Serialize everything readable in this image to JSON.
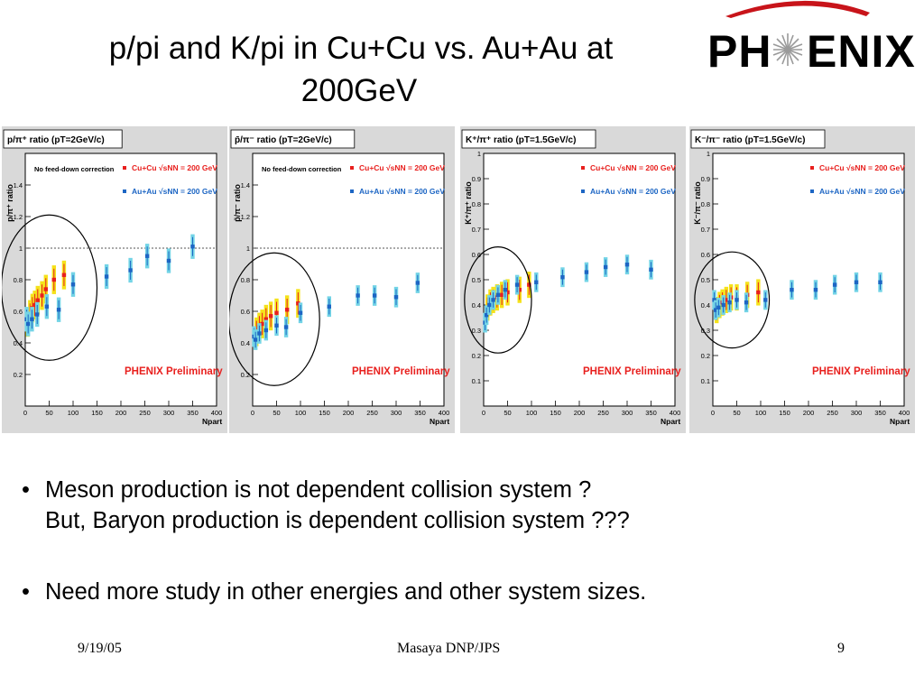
{
  "title_line1": "p/pi and K/pi in Cu+Cu vs. Au+Au at",
  "title_line2": "200GeV",
  "logo": {
    "text_left": "PH",
    "text_right": "ENIX"
  },
  "bullets": [
    {
      "line1": "Meson production is not dependent collision system ?",
      "line2": "But, Baryon production is dependent collision system ???"
    },
    {
      "line1": "Need more study in other energies and other system sizes.",
      "line2": ""
    }
  ],
  "footer": {
    "date": "9/19/05",
    "center": "Masaya DNP/JPS",
    "page": "9"
  },
  "colors": {
    "cucu": "#e8201e",
    "cucu_sys": "#f5e21a",
    "auau": "#1d66c4",
    "auau_sys": "#73d4e6",
    "preliminary": "#e8201e",
    "frame_bg": "#d9d9d9"
  },
  "chart_data": [
    {
      "type": "scatter",
      "title": "p/π⁺ ratio (pT=2GeV/c)",
      "ylabel": "p/π⁺ ratio",
      "xlabel": "Npart",
      "note": "No feed-down correction",
      "watermark": "PHENIX Preliminary",
      "xlim": [
        0,
        400
      ],
      "ylim": [
        0,
        1.6
      ],
      "xticks": [
        "0",
        "50",
        "100",
        "150",
        "200",
        "250",
        "300",
        "350",
        "400"
      ],
      "yticks": [
        "0.2",
        "0.4",
        "0.6",
        "0.8",
        "1",
        "1.2",
        "1.4"
      ],
      "ref_line": 1,
      "ellipse": {
        "cx": 50,
        "cy": 0.75,
        "rx": 100,
        "ry": 0.46
      },
      "series": [
        {
          "name": "Cu+Cu √sNN = 200 GeV",
          "role": "cucu",
          "points": [
            [
              5,
              0.53
            ],
            [
              10,
              0.58
            ],
            [
              15,
              0.62
            ],
            [
              20,
              0.64
            ],
            [
              26,
              0.67
            ],
            [
              35,
              0.7
            ],
            [
              43,
              0.74
            ],
            [
              60,
              0.8
            ],
            [
              81,
              0.83
            ]
          ],
          "err": 0.07
        },
        {
          "name": "Au+Au √sNN = 200 GeV",
          "role": "auau",
          "points": [
            [
              3,
              0.55
            ],
            [
              6,
              0.52
            ],
            [
              14,
              0.55
            ],
            [
              25,
              0.58
            ],
            [
              45,
              0.63
            ],
            [
              70,
              0.61
            ],
            [
              100,
              0.77
            ],
            [
              170,
              0.82
            ],
            [
              220,
              0.86
            ],
            [
              255,
              0.95
            ],
            [
              300,
              0.92
            ],
            [
              350,
              1.01
            ]
          ],
          "err": 0.06
        }
      ]
    },
    {
      "type": "scatter",
      "title": "p̄/π⁻ ratio (pT=2GeV/c)",
      "ylabel": "p̄/π⁻ ratio",
      "xlabel": "Npart",
      "note": "No feed-down correction",
      "watermark": "PHENIX Preliminary",
      "xlim": [
        0,
        400
      ],
      "ylim": [
        0,
        1.6
      ],
      "xticks": [
        "0",
        "50",
        "100",
        "150",
        "200",
        "250",
        "300",
        "350",
        "400"
      ],
      "yticks": [
        "0.2",
        "0.4",
        "0.6",
        "0.8",
        "1",
        "1.2",
        "1.4"
      ],
      "ref_line": 1,
      "ellipse": {
        "cx": 45,
        "cy": 0.55,
        "rx": 95,
        "ry": 0.42
      },
      "series": [
        {
          "name": "Cu+Cu √sNN = 200 GeV",
          "role": "cucu",
          "points": [
            [
              8,
              0.47
            ],
            [
              14,
              0.5
            ],
            [
              20,
              0.52
            ],
            [
              28,
              0.55
            ],
            [
              38,
              0.57
            ],
            [
              50,
              0.59
            ],
            [
              72,
              0.61
            ],
            [
              95,
              0.65
            ]
          ],
          "err": 0.07
        },
        {
          "name": "Au+Au √sNN = 200 GeV",
          "role": "auau",
          "points": [
            [
              3,
              0.44
            ],
            [
              6,
              0.42
            ],
            [
              14,
              0.46
            ],
            [
              28,
              0.48
            ],
            [
              50,
              0.51
            ],
            [
              70,
              0.5
            ],
            [
              100,
              0.59
            ],
            [
              160,
              0.63
            ],
            [
              220,
              0.7
            ],
            [
              255,
              0.7
            ],
            [
              300,
              0.69
            ],
            [
              345,
              0.78
            ]
          ],
          "err": 0.05
        }
      ]
    },
    {
      "type": "scatter",
      "title": "K⁺/π⁺ ratio (pT=1.5GeV/c)",
      "ylabel": "K⁺/π⁺ ratio",
      "xlabel": "Npart",
      "watermark": "PHENIX Preliminary",
      "xlim": [
        0,
        400
      ],
      "ylim": [
        0,
        1
      ],
      "xticks": [
        "0",
        "50",
        "100",
        "150",
        "200",
        "250",
        "300",
        "350",
        "400"
      ],
      "yticks": [
        "0.1",
        "0.2",
        "0.3",
        "0.4",
        "0.5",
        "0.6",
        "0.7",
        "0.8",
        "0.9",
        "1"
      ],
      "ellipse": {
        "cx": 30,
        "cy": 0.42,
        "rx": 70,
        "ry": 0.21
      },
      "series": [
        {
          "name": "Cu+Cu √sNN = 200 GeV",
          "role": "cucu",
          "points": [
            [
              8,
              0.39
            ],
            [
              14,
              0.41
            ],
            [
              20,
              0.42
            ],
            [
              28,
              0.43
            ],
            [
              38,
              0.44
            ],
            [
              50,
              0.45
            ],
            [
              75,
              0.46
            ],
            [
              95,
              0.48
            ]
          ],
          "err": 0.04
        },
        {
          "name": "Au+Au √sNN = 200 GeV",
          "role": "auau",
          "points": [
            [
              3,
              0.33
            ],
            [
              6,
              0.36
            ],
            [
              12,
              0.4
            ],
            [
              20,
              0.42
            ],
            [
              30,
              0.44
            ],
            [
              45,
              0.46
            ],
            [
              70,
              0.48
            ],
            [
              110,
              0.49
            ],
            [
              165,
              0.51
            ],
            [
              215,
              0.53
            ],
            [
              255,
              0.55
            ],
            [
              300,
              0.56
            ],
            [
              350,
              0.54
            ]
          ],
          "err": 0.03
        }
      ]
    },
    {
      "type": "scatter",
      "title": "K⁻/π⁻ ratio (pT=1.5GeV/c)",
      "ylabel": "K⁻/π⁻ ratio",
      "xlabel": "Npart",
      "watermark": "PHENIX Preliminary",
      "xlim": [
        0,
        400
      ],
      "ylim": [
        0,
        1
      ],
      "xticks": [
        "0",
        "50",
        "100",
        "150",
        "200",
        "250",
        "300",
        "350",
        "400"
      ],
      "yticks": [
        "0.1",
        "0.2",
        "0.3",
        "0.4",
        "0.5",
        "0.6",
        "0.7",
        "0.8",
        "0.9",
        "1"
      ],
      "ellipse": {
        "cx": 40,
        "cy": 0.42,
        "rx": 78,
        "ry": 0.19
      },
      "series": [
        {
          "name": "Cu+Cu √sNN = 200 GeV",
          "role": "cucu",
          "points": [
            [
              8,
              0.38
            ],
            [
              14,
              0.4
            ],
            [
              20,
              0.41
            ],
            [
              28,
              0.42
            ],
            [
              38,
              0.43
            ],
            [
              50,
              0.43
            ],
            [
              72,
              0.44
            ],
            [
              95,
              0.45
            ]
          ],
          "err": 0.04
        },
        {
          "name": "Au+Au √sNN = 200 GeV",
          "role": "auau",
          "points": [
            [
              3,
              0.42
            ],
            [
              6,
              0.38
            ],
            [
              12,
              0.39
            ],
            [
              22,
              0.4
            ],
            [
              35,
              0.41
            ],
            [
              50,
              0.42
            ],
            [
              70,
              0.41
            ],
            [
              110,
              0.42
            ],
            [
              165,
              0.46
            ],
            [
              215,
              0.46
            ],
            [
              255,
              0.48
            ],
            [
              300,
              0.49
            ],
            [
              350,
              0.49
            ]
          ],
          "err": 0.03
        }
      ]
    }
  ]
}
